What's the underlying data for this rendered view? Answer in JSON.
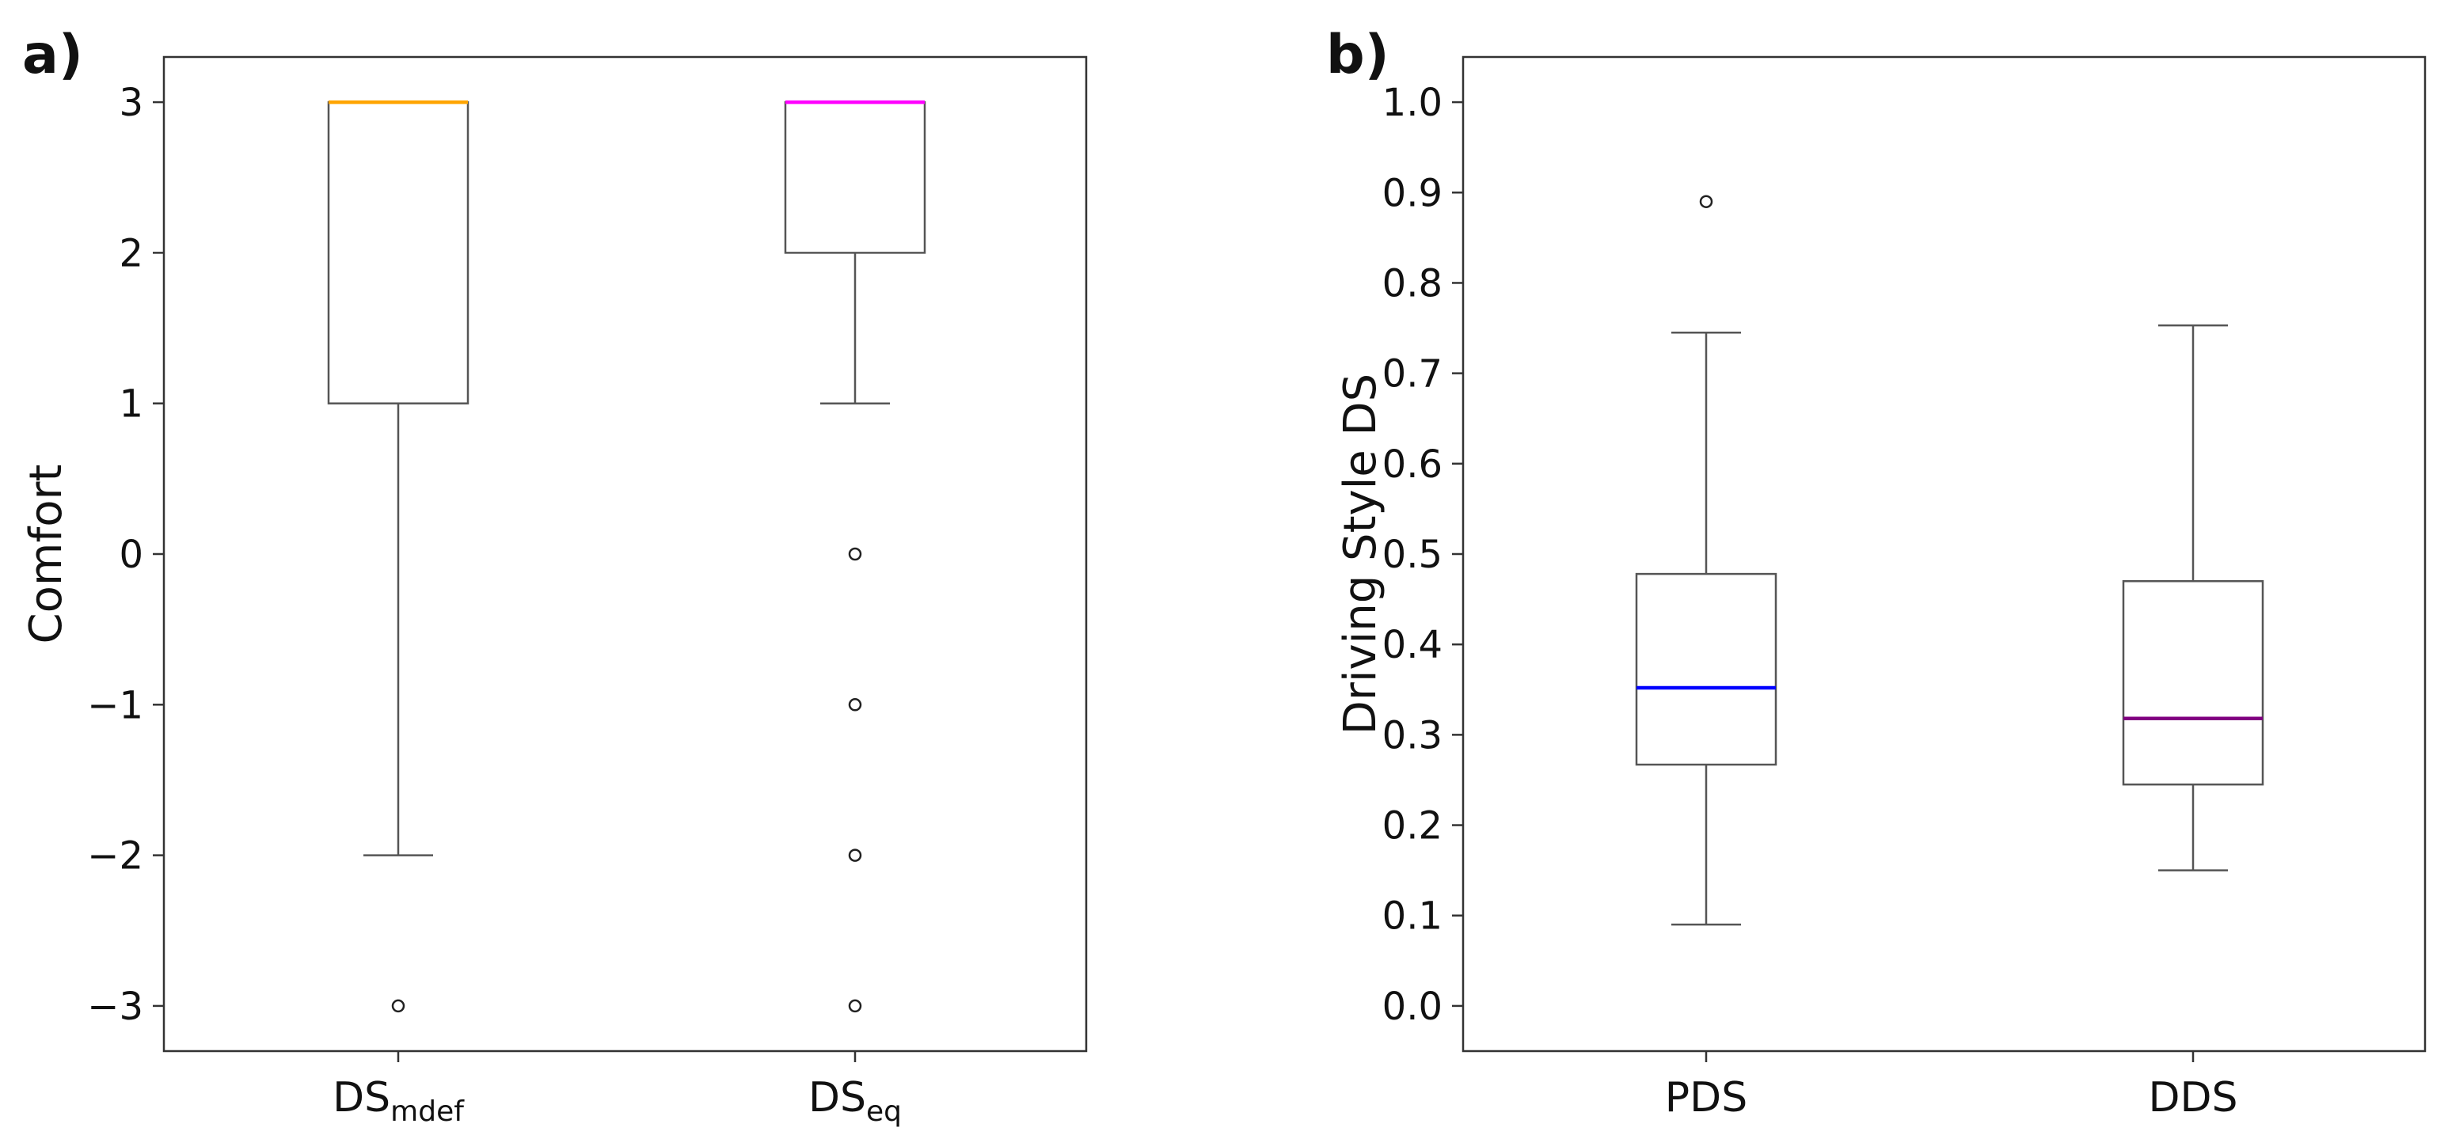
{
  "chart_data": [
    {
      "type": "box",
      "panel_label": "a)",
      "ylabel": "Comfort",
      "ylim": [
        -3.3,
        3.3
      ],
      "yticks": [
        -3,
        -2,
        -1,
        0,
        1,
        2,
        3
      ],
      "ytick_labels": [
        "−3",
        "−2",
        "−1",
        "0",
        "1",
        "2",
        "3"
      ],
      "categories": [
        {
          "main": "DS",
          "sub": "mdef"
        },
        {
          "main": "DS",
          "sub": "eq"
        }
      ],
      "boxes": [
        {
          "q1": 1,
          "median": 3,
          "q3": 3,
          "whisker_low": -2,
          "whisker_high": 3,
          "outliers": [
            -3
          ],
          "median_color": "#FFA500"
        },
        {
          "q1": 2,
          "median": 3,
          "q3": 3,
          "whisker_low": 1,
          "whisker_high": 3,
          "outliers": [
            0,
            -1,
            -2,
            -3
          ],
          "median_color": "#FF00FF"
        }
      ]
    },
    {
      "type": "box",
      "panel_label": "b)",
      "ylabel": "Driving Style DS",
      "ylim": [
        -0.05,
        1.05
      ],
      "yticks": [
        0.0,
        0.1,
        0.2,
        0.3,
        0.4,
        0.5,
        0.6,
        0.7,
        0.8,
        0.9,
        1.0
      ],
      "ytick_labels": [
        "0.0",
        "0.1",
        "0.2",
        "0.3",
        "0.4",
        "0.5",
        "0.6",
        "0.7",
        "0.8",
        "0.9",
        "1.0"
      ],
      "categories": [
        {
          "main": "PDS",
          "sub": ""
        },
        {
          "main": "DDS",
          "sub": ""
        }
      ],
      "boxes": [
        {
          "q1": 0.267,
          "median": 0.352,
          "q3": 0.478,
          "whisker_low": 0.09,
          "whisker_high": 0.745,
          "outliers": [
            0.89
          ],
          "median_color": "#0000FF"
        },
        {
          "q1": 0.245,
          "median": 0.318,
          "q3": 0.47,
          "whisker_low": 0.15,
          "whisker_high": 0.753,
          "outliers": [],
          "median_color": "#800080"
        }
      ]
    }
  ]
}
